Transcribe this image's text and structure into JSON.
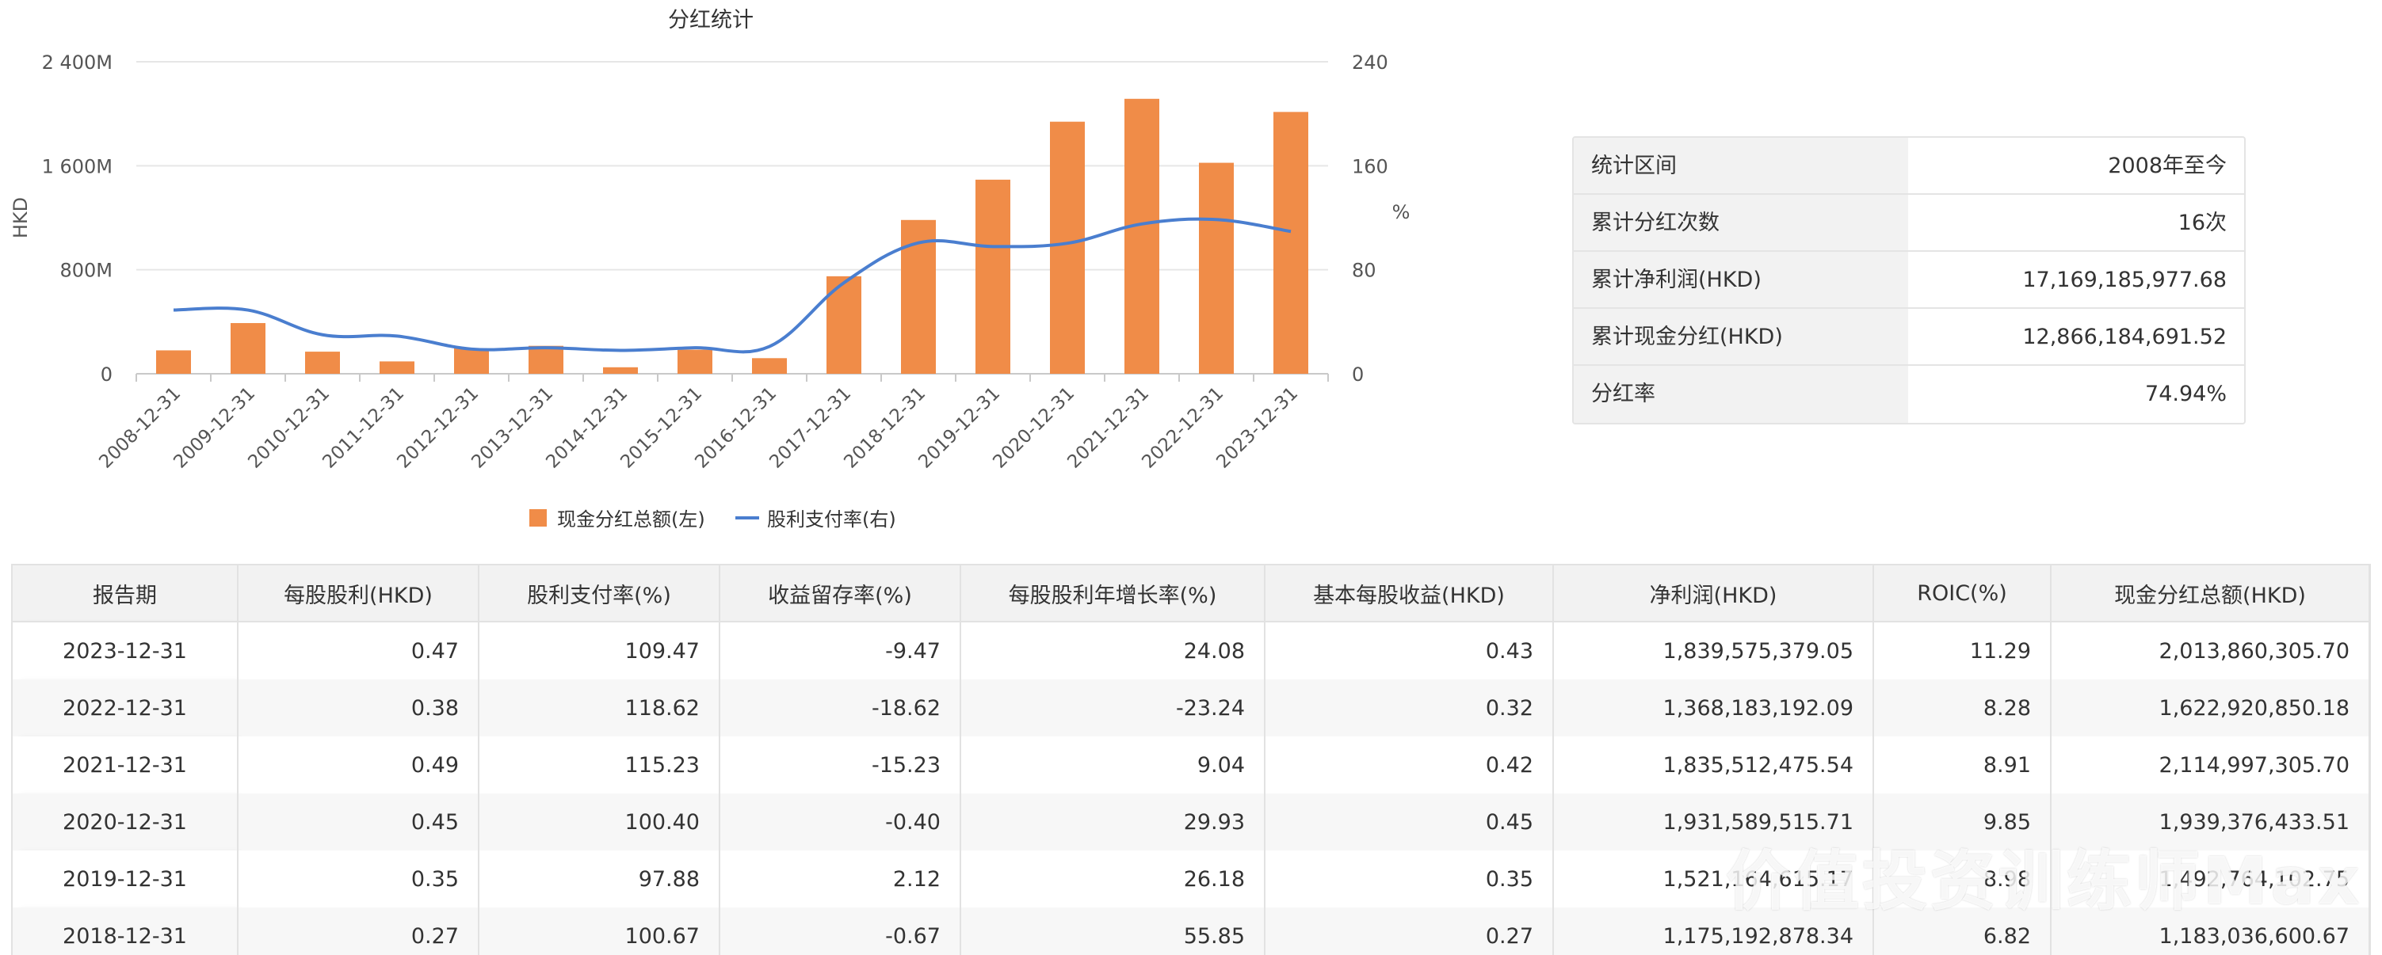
{
  "chart_data": {
    "type": "bar+line",
    "title": "分红统计",
    "ylabel_left": "HKD",
    "ylabel_right": "%",
    "left_ticks": [
      "0",
      "800M",
      "1 600M",
      "2 400M"
    ],
    "right_ticks": [
      "0",
      "80",
      "160",
      "240"
    ],
    "ylim_left": [
      0,
      2400
    ],
    "ylim_right": [
      0,
      240
    ],
    "categories": [
      "2008-12-31",
      "2009-12-31",
      "2010-12-31",
      "2011-12-31",
      "2012-12-31",
      "2013-12-31",
      "2014-12-31",
      "2015-12-31",
      "2016-12-31",
      "2017-12-31",
      "2018-12-31",
      "2019-12-31",
      "2020-12-31",
      "2021-12-31",
      "2022-12-31",
      "2023-12-31"
    ],
    "series": [
      {
        "name": "现金分红总额(左)",
        "type": "bar",
        "axis": "left",
        "unit": "M HKD",
        "color": "#f08c48",
        "values": [
          180,
          390,
          170,
          95,
          195,
          215,
          50,
          185,
          120,
          750,
          1183,
          1493,
          1939,
          2115,
          1623,
          2014
        ]
      },
      {
        "name": "股利支付率(右)",
        "type": "line",
        "axis": "right",
        "unit": "%",
        "color": "#4a7ecf",
        "values": [
          49,
          49,
          30,
          29,
          19,
          20,
          18,
          20,
          21,
          70,
          100.67,
          97.88,
          100.4,
          115.23,
          118.62,
          109.47
        ]
      }
    ],
    "grid": true,
    "legend": "bottom-center"
  },
  "summary": [
    {
      "label": "统计区间",
      "value": "2008年至今"
    },
    {
      "label": "累计分红次数",
      "value": "16次"
    },
    {
      "label": "累计净利润(HKD)",
      "value": "17,169,185,977.68"
    },
    {
      "label": "累计现金分红(HKD)",
      "value": "12,866,184,691.52"
    },
    {
      "label": "分红率",
      "value": "74.94%"
    }
  ],
  "table": {
    "headers": [
      "报告期",
      "每股股利(HKD)",
      "股利支付率(%)",
      "收益留存率(%)",
      "每股股利年增长率(%)",
      "基本每股收益(HKD)",
      "净利润(HKD)",
      "ROIC(%)",
      "现金分红总额(HKD)"
    ],
    "rows": [
      [
        "2023-12-31",
        "0.47",
        "109.47",
        "-9.47",
        "24.08",
        "0.43",
        "1,839,575,379.05",
        "11.29",
        "2,013,860,305.70"
      ],
      [
        "2022-12-31",
        "0.38",
        "118.62",
        "-18.62",
        "-23.24",
        "0.32",
        "1,368,183,192.09",
        "8.28",
        "1,622,920,850.18"
      ],
      [
        "2021-12-31",
        "0.49",
        "115.23",
        "-15.23",
        "9.04",
        "0.42",
        "1,835,512,475.54",
        "8.91",
        "2,114,997,305.70"
      ],
      [
        "2020-12-31",
        "0.45",
        "100.40",
        "-0.40",
        "29.93",
        "0.45",
        "1,931,589,515.71",
        "9.85",
        "1,939,376,433.51"
      ],
      [
        "2019-12-31",
        "0.35",
        "97.88",
        "2.12",
        "26.18",
        "0.35",
        "1,521,164,615.17",
        "8.98",
        "1,492,764,102.75"
      ],
      [
        "2018-12-31",
        "0.27",
        "100.67",
        "-0.67",
        "55.85",
        "0.27",
        "1,175,192,878.34",
        "6.82",
        "1,183,036,600.67"
      ]
    ]
  },
  "watermark": "价值投资训练师Max"
}
